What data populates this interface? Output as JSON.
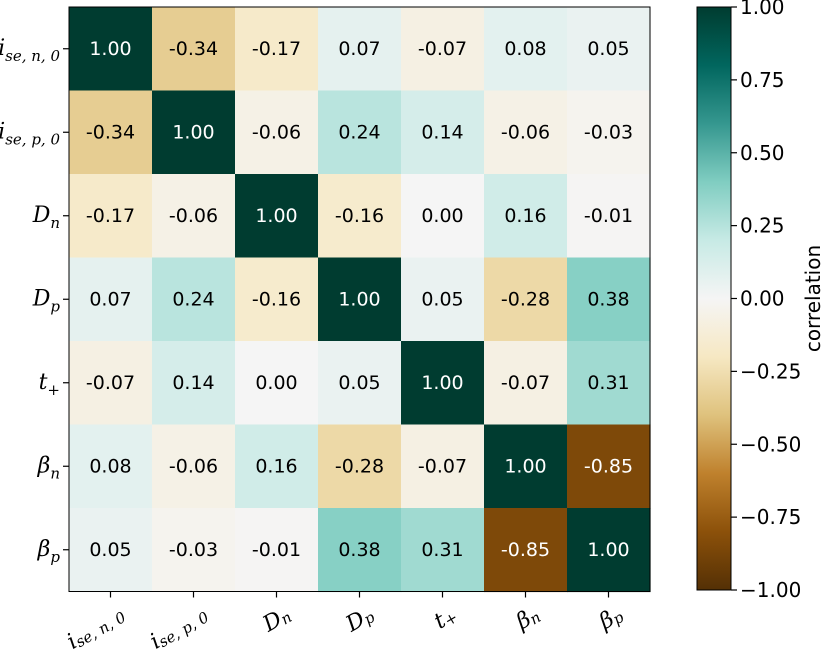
{
  "chart_data": {
    "type": "heatmap",
    "title": "",
    "labels": [
      {
        "base": "i",
        "sub": "se, n, 0"
      },
      {
        "base": "i",
        "sub": "se, p, 0"
      },
      {
        "base": "D",
        "sub": "n"
      },
      {
        "base": "D",
        "sub": "p"
      },
      {
        "base": "t",
        "sub": "+"
      },
      {
        "base": "β",
        "sub": "n"
      },
      {
        "base": "β",
        "sub": "p"
      }
    ],
    "matrix": [
      [
        1.0,
        -0.34,
        -0.17,
        0.07,
        -0.07,
        0.08,
        0.05
      ],
      [
        -0.34,
        1.0,
        -0.06,
        0.24,
        0.14,
        -0.06,
        -0.03
      ],
      [
        -0.17,
        -0.06,
        1.0,
        -0.16,
        0.0,
        0.16,
        -0.01
      ],
      [
        0.07,
        0.24,
        -0.16,
        1.0,
        0.05,
        -0.28,
        0.38
      ],
      [
        -0.07,
        0.14,
        0.0,
        0.05,
        1.0,
        -0.07,
        0.31
      ],
      [
        0.08,
        -0.06,
        0.16,
        -0.28,
        -0.07,
        1.0,
        -0.85
      ],
      [
        0.05,
        -0.03,
        -0.01,
        0.38,
        0.31,
        -0.85,
        1.0
      ]
    ],
    "value_format": "0.00",
    "colormap": "BrBG",
    "vmin": -1.0,
    "vmax": 1.0,
    "colorbar": {
      "label": "correlation",
      "ticks": [
        1.0,
        0.75,
        0.5,
        0.25,
        0.0,
        -0.25,
        -0.5,
        -0.75,
        -1.0
      ],
      "tick_labels": [
        "1.00",
        "0.75",
        "0.50",
        "0.25",
        "0.00",
        "−0.25",
        "−0.50",
        "−0.75",
        "−1.00"
      ]
    }
  }
}
